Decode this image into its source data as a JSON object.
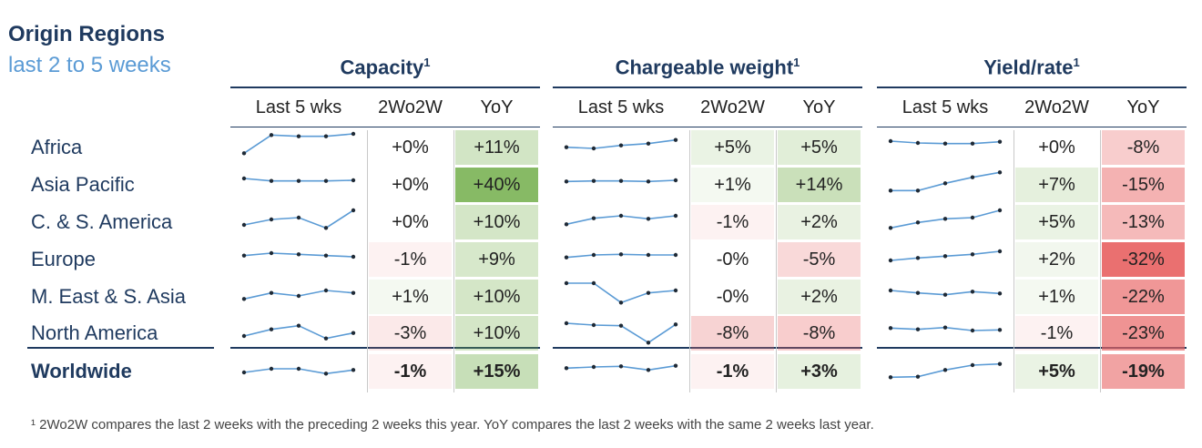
{
  "header": {
    "title": "Origin Regions",
    "subtitle": "last 2 to 5 weeks"
  },
  "groups": [
    {
      "key": "capacity",
      "title": "Capacity",
      "sup": "1"
    },
    {
      "key": "weight",
      "title": "Chargeable weight",
      "sup": "1"
    },
    {
      "key": "yield",
      "title": "Yield/rate",
      "sup": "1"
    }
  ],
  "columns": {
    "last5": "Last 5 wks",
    "wow": "2Wo2W",
    "yoy": "YoY"
  },
  "regions": [
    "Africa",
    "Asia Pacific",
    "C. & S. America",
    "Europe",
    "M. East & S. Asia",
    "North America",
    "Worldwide"
  ],
  "colors": {
    "navy": "#1f3a5f",
    "spark": "#5b9bd5",
    "dot": "#1f2a36"
  },
  "chart_data": {
    "type": "table",
    "title": "Origin Regions last 2 to 5 weeks",
    "series": [
      {
        "name": "Capacity",
        "wow": [
          "+0%",
          "+0%",
          "+0%",
          "-1%",
          "+1%",
          "-3%",
          "-1%"
        ],
        "wow_v": [
          0,
          0,
          0,
          -1,
          1,
          -3,
          -1
        ],
        "yoy": [
          "+11%",
          "+40%",
          "+10%",
          "+9%",
          "+10%",
          "+10%",
          "+15%"
        ],
        "yoy_v": [
          11,
          40,
          10,
          9,
          10,
          10,
          15
        ],
        "spark": [
          [
            1,
            4,
            3.8,
            3.8,
            4.2
          ],
          [
            3,
            2.6,
            2.6,
            2.6,
            2.7
          ],
          [
            1.5,
            2.4,
            2.7,
            1,
            3.9
          ],
          [
            2.6,
            3.0,
            2.8,
            2.6,
            2.4
          ],
          [
            1.6,
            2.6,
            2.1,
            3.0,
            2.6
          ],
          [
            1.5,
            2.6,
            3.2,
            1.1,
            2.0
          ],
          [
            1.8,
            2.4,
            2.4,
            1.6,
            2.2
          ]
        ]
      },
      {
        "name": "Chargeable weight",
        "wow": [
          "+5%",
          "+1%",
          "-1%",
          "-0%",
          "-0%",
          "-8%",
          "-1%"
        ],
        "wow_v": [
          5,
          1,
          -1,
          0,
          0,
          -8,
          -1
        ],
        "yoy": [
          "+5%",
          "+14%",
          "+2%",
          "-5%",
          "+2%",
          "-8%",
          "+3%"
        ],
        "yoy_v": [
          5,
          14,
          2,
          -5,
          2,
          -8,
          3
        ],
        "spark": [
          [
            2.0,
            1.8,
            2.3,
            2.6,
            3.2
          ],
          [
            2.5,
            2.6,
            2.6,
            2.5,
            2.7
          ],
          [
            1.6,
            2.6,
            3.0,
            2.5,
            3.0
          ],
          [
            2.3,
            2.7,
            2.8,
            2.7,
            2.7
          ],
          [
            4.2,
            4.2,
            1.0,
            2.6,
            3.0
          ],
          [
            3.6,
            3.3,
            3.2,
            0.4,
            3.4
          ],
          [
            2.5,
            2.7,
            2.8,
            2.2,
            2.9
          ]
        ]
      },
      {
        "name": "Yield/rate",
        "wow": [
          "+0%",
          "+7%",
          "+5%",
          "+2%",
          "+1%",
          "-1%",
          "+5%"
        ],
        "wow_v": [
          0,
          7,
          5,
          2,
          1,
          -1,
          5
        ],
        "yoy": [
          "-8%",
          "-15%",
          "-13%",
          "-32%",
          "-22%",
          "-23%",
          "-19%"
        ],
        "yoy_v": [
          -8,
          -15,
          -13,
          -32,
          -22,
          -23,
          -19
        ],
        "spark": [
          [
            3.0,
            2.7,
            2.6,
            2.6,
            2.9
          ],
          [
            1.0,
            1.0,
            2.2,
            3.2,
            4.0
          ],
          [
            1.0,
            1.9,
            2.5,
            2.7,
            3.9
          ],
          [
            1.8,
            2.2,
            2.5,
            2.8,
            3.3
          ],
          [
            3.0,
            2.6,
            2.3,
            2.8,
            2.5
          ],
          [
            2.8,
            2.6,
            2.9,
            2.4,
            2.5
          ],
          [
            1.0,
            1.1,
            2.2,
            3.0,
            3.2
          ]
        ]
      }
    ]
  },
  "footnote": "¹ 2Wo2W compares the last 2 weeks with the preceding 2 weeks this year. YoY compares the last 2 weeks with the same 2 weeks last year."
}
